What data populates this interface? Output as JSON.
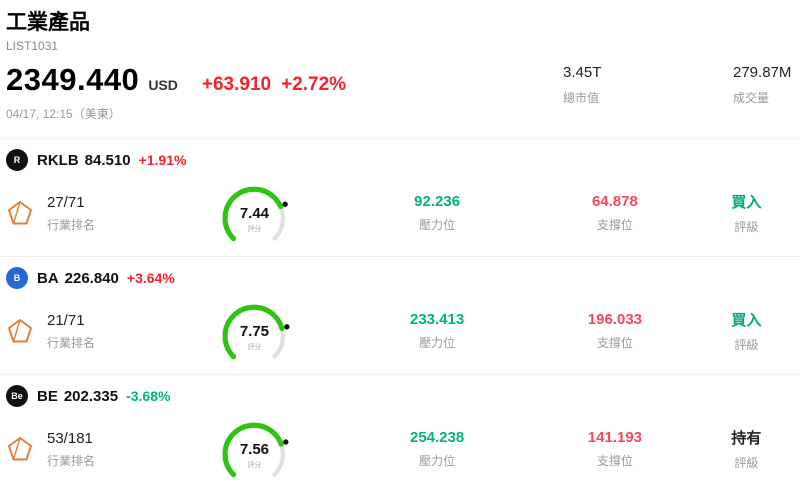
{
  "header": {
    "title": "工業產品",
    "subtitle": "LIST1031"
  },
  "quote": {
    "price": "2349.440",
    "currency": "USD",
    "change": "+63.910",
    "change_pct": "+2.72%",
    "timestamp": "04/17, 12:15（美東）"
  },
  "stats": [
    {
      "value": "3.45T",
      "label": "總市值"
    },
    {
      "value": "279.87M",
      "label": "成交量"
    }
  ],
  "labels": {
    "rank": "行業排名",
    "score": "評分",
    "pressure": "壓力位",
    "support": "支撐位",
    "rating": "評級"
  },
  "colors": {
    "up": "#f5222d",
    "down": "#00b578",
    "pressure": "#00b578",
    "support": "#f5475d",
    "gauge": "#2fc413",
    "gauge_rest": "#e0e0e0"
  },
  "stocks": [
    {
      "ticker": "RKLB",
      "price": "84.510",
      "change": "+1.91%",
      "change_color": "#f5222d",
      "logo": {
        "bg": "#111111",
        "fg": "#ffffff",
        "glyph": "R"
      },
      "rank": "27/71",
      "score": "7.44",
      "pressure": "92.236",
      "support": "64.878",
      "rating": "買入",
      "rating_color": "#00a87e"
    },
    {
      "ticker": "BA",
      "price": "226.840",
      "change": "+3.64%",
      "change_color": "#f5222d",
      "logo": {
        "bg": "#2668d9",
        "fg": "#ffffff",
        "glyph": "B"
      },
      "rank": "21/71",
      "score": "7.75",
      "pressure": "233.413",
      "support": "196.033",
      "rating": "買入",
      "rating_color": "#00a87e"
    },
    {
      "ticker": "BE",
      "price": "202.335",
      "change": "-3.68%",
      "change_color": "#00b578",
      "logo": {
        "bg": "#111111",
        "fg": "#ffffff",
        "glyph": "Be"
      },
      "rank": "53/181",
      "score": "7.56",
      "pressure": "254.238",
      "support": "141.193",
      "rating": "持有",
      "rating_color": "#222222"
    }
  ]
}
